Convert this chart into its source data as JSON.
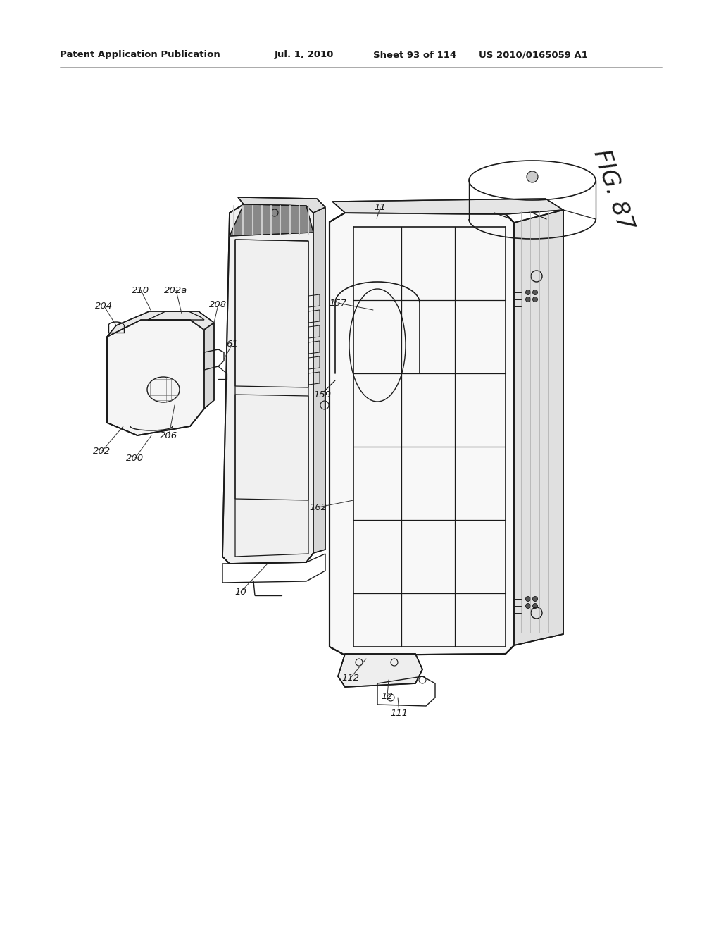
{
  "background_color": "#ffffff",
  "page_width": 10.24,
  "page_height": 13.2,
  "header_text": "Patent Application Publication",
  "header_date": "Jul. 1, 2010",
  "header_sheet": "Sheet 93 of 114",
  "header_patent": "US 2010/0165059 A1",
  "figure_label": "FIG. 87",
  "lc": "#1a1a1a",
  "lw_main": 1.4,
  "lw_thin": 0.8,
  "lw_hair": 0.5
}
